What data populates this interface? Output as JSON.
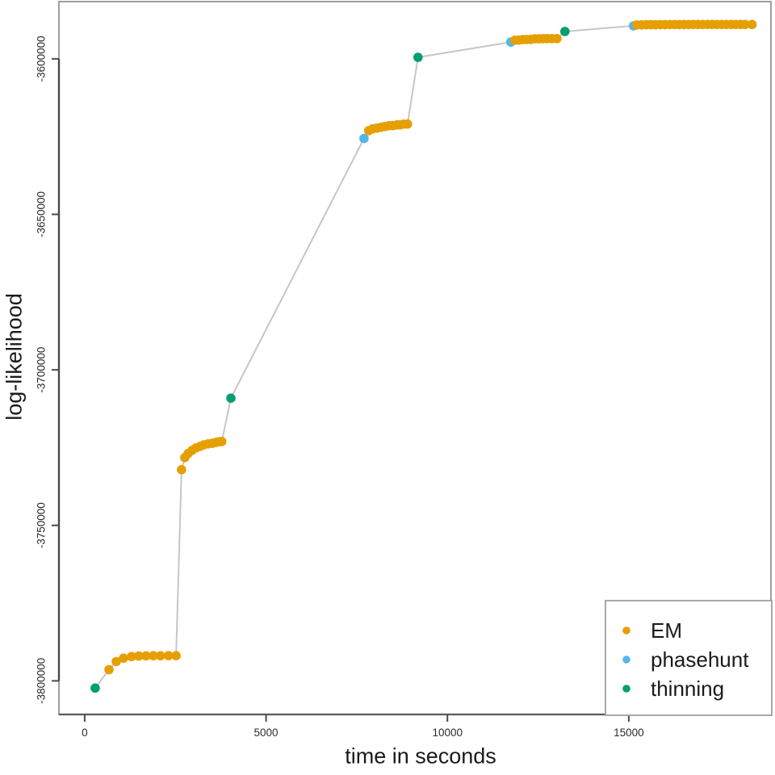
{
  "figure": {
    "background": "#ffffff",
    "connector_line_color": "#c6c6c6",
    "box_color": "#9e9e9e",
    "axis_color": "#4a4a4a",
    "tick_label_color": "#2b2b2b",
    "title_color": "#1a1a1a"
  },
  "chart_data": {
    "type": "scatter",
    "title": "",
    "xlabel": "time in seconds",
    "ylabel": "log-likelihood",
    "grid": false,
    "connected_by_line": true,
    "xlim": [
      -710,
      18920
    ],
    "ylim": [
      -3810800,
      -3581600
    ],
    "x_ticks": [
      0,
      5000,
      10000,
      15000
    ],
    "y_ticks": [
      -3600000,
      -3650000,
      -3700000,
      -3750000,
      -3800000
    ],
    "legend": {
      "position": "bottom-right",
      "entries": [
        {
          "label": "EM",
          "color": "#E69F00"
        },
        {
          "label": "phasehunt",
          "color": "#56B4E9"
        },
        {
          "label": "thinning",
          "color": "#009E73"
        }
      ]
    },
    "series_colors": {
      "EM": "#E69F00",
      "phasehunt": "#56B4E9",
      "thinning": "#009E73"
    },
    "points_format": [
      "time_seconds",
      "log_likelihood",
      "method"
    ],
    "points": [
      [
        290,
        -3802300,
        "thinning"
      ],
      [
        670,
        -3796400,
        "EM"
      ],
      [
        870,
        -3793800,
        "EM"
      ],
      [
        1070,
        -3792700,
        "EM"
      ],
      [
        1290,
        -3792200,
        "EM"
      ],
      [
        1490,
        -3792000,
        "EM"
      ],
      [
        1690,
        -3791960,
        "EM"
      ],
      [
        1890,
        -3791930,
        "EM"
      ],
      [
        2090,
        -3791920,
        "EM"
      ],
      [
        2310,
        -3791910,
        "EM"
      ],
      [
        2520,
        -3791900,
        "EM"
      ],
      [
        2670,
        -3732100,
        "EM"
      ],
      [
        2760,
        -3728200,
        "EM"
      ],
      [
        2850,
        -3726900,
        "EM"
      ],
      [
        2960,
        -3725900,
        "EM"
      ],
      [
        3070,
        -3725100,
        "EM"
      ],
      [
        3180,
        -3724600,
        "EM"
      ],
      [
        3290,
        -3724100,
        "EM"
      ],
      [
        3400,
        -3723800,
        "EM"
      ],
      [
        3520,
        -3723600,
        "EM"
      ],
      [
        3630,
        -3723300,
        "EM"
      ],
      [
        3720,
        -3723100,
        "EM"
      ],
      [
        3780,
        -3723050,
        "EM"
      ],
      [
        4030,
        -3709100,
        "thinning"
      ],
      [
        7700,
        -3625600,
        "phasehunt"
      ],
      [
        7830,
        -3623100,
        "EM"
      ],
      [
        7940,
        -3622500,
        "EM"
      ],
      [
        8060,
        -3622280,
        "EM"
      ],
      [
        8170,
        -3622020,
        "EM"
      ],
      [
        8280,
        -3621760,
        "EM"
      ],
      [
        8390,
        -3621500,
        "EM"
      ],
      [
        8500,
        -3621460,
        "EM"
      ],
      [
        8610,
        -3621240,
        "EM"
      ],
      [
        8700,
        -3621220,
        "EM"
      ],
      [
        8790,
        -3621000,
        "EM"
      ],
      [
        8900,
        -3620980,
        "EM"
      ],
      [
        9190,
        -3599500,
        "thinning"
      ],
      [
        11750,
        -3594600,
        "phasehunt"
      ],
      [
        11860,
        -3594000,
        "EM"
      ],
      [
        11970,
        -3593970,
        "EM"
      ],
      [
        12080,
        -3593800,
        "EM"
      ],
      [
        12190,
        -3593780,
        "EM"
      ],
      [
        12300,
        -3593760,
        "EM"
      ],
      [
        12420,
        -3593550,
        "EM"
      ],
      [
        12530,
        -3593530,
        "EM"
      ],
      [
        12640,
        -3593510,
        "EM"
      ],
      [
        12750,
        -3593500,
        "EM"
      ],
      [
        12880,
        -3593490,
        "EM"
      ],
      [
        13020,
        -3593480,
        "EM"
      ],
      [
        13240,
        -3591200,
        "thinning"
      ],
      [
        15130,
        -3589400,
        "phasehunt"
      ],
      [
        15220,
        -3589100,
        "EM"
      ],
      [
        15350,
        -3589070,
        "EM"
      ],
      [
        15480,
        -3589050,
        "EM"
      ],
      [
        15610,
        -3589030,
        "EM"
      ],
      [
        15740,
        -3589015,
        "EM"
      ],
      [
        15870,
        -3589000,
        "EM"
      ],
      [
        16000,
        -3588990,
        "EM"
      ],
      [
        16130,
        -3588980,
        "EM"
      ],
      [
        16260,
        -3588975,
        "EM"
      ],
      [
        16390,
        -3588970,
        "EM"
      ],
      [
        16520,
        -3588965,
        "EM"
      ],
      [
        16650,
        -3588960,
        "EM"
      ],
      [
        16780,
        -3588958,
        "EM"
      ],
      [
        16910,
        -3588956,
        "EM"
      ],
      [
        17040,
        -3588954,
        "EM"
      ],
      [
        17170,
        -3588952,
        "EM"
      ],
      [
        17300,
        -3588950,
        "EM"
      ],
      [
        17430,
        -3588949,
        "EM"
      ],
      [
        17560,
        -3588948,
        "EM"
      ],
      [
        17690,
        -3588947,
        "EM"
      ],
      [
        17820,
        -3588946,
        "EM"
      ],
      [
        17950,
        -3588945,
        "EM"
      ],
      [
        18080,
        -3588944,
        "EM"
      ],
      [
        18210,
        -3588943,
        "EM"
      ],
      [
        18400,
        -3588942,
        "EM"
      ]
    ]
  }
}
